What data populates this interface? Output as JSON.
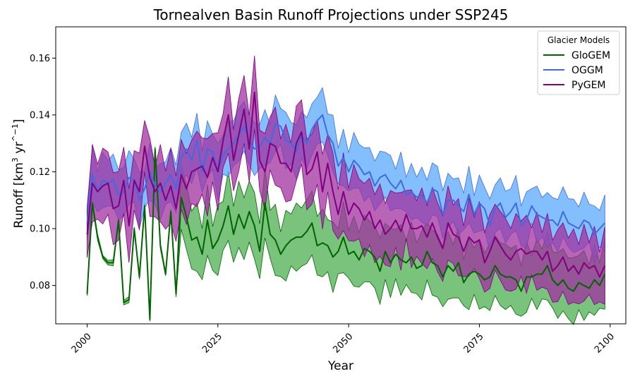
{
  "chart_data": {
    "type": "line",
    "title": "Tornealven Basin Runoff Projections under SSP245",
    "xlabel": "Year",
    "ylabel_main": "Runoff [km",
    "ylabel_sup1": "3",
    "ylabel_mid": " yr",
    "ylabel_sup2": "^−1",
    "ylabel_end": "]",
    "xlim": [
      1994,
      2103
    ],
    "ylim": [
      0.0665,
      0.171
    ],
    "x_ticks": [
      2000,
      2025,
      2050,
      2075,
      2100
    ],
    "y_ticks": [
      0.08,
      0.1,
      0.12,
      0.14,
      0.16
    ],
    "y_tick_labels": [
      "0.08",
      "0.10",
      "0.12",
      "0.14",
      "0.16"
    ],
    "legend_title": "Glacier Models",
    "legend_position": "top-right",
    "x": [
      2000,
      2001,
      2002,
      2003,
      2004,
      2005,
      2006,
      2007,
      2008,
      2009,
      2010,
      2011,
      2012,
      2013,
      2014,
      2015,
      2016,
      2017,
      2018,
      2019,
      2020,
      2021,
      2022,
      2023,
      2024,
      2025,
      2026,
      2027,
      2028,
      2029,
      2030,
      2031,
      2032,
      2033,
      2034,
      2035,
      2036,
      2037,
      2038,
      2039,
      2040,
      2041,
      2042,
      2043,
      2044,
      2045,
      2046,
      2047,
      2048,
      2049,
      2050,
      2051,
      2052,
      2053,
      2054,
      2055,
      2056,
      2057,
      2058,
      2059,
      2060,
      2061,
      2062,
      2063,
      2064,
      2065,
      2066,
      2067,
      2068,
      2069,
      2070,
      2071,
      2072,
      2073,
      2074,
      2075,
      2076,
      2077,
      2078,
      2079,
      2080,
      2081,
      2082,
      2083,
      2084,
      2085,
      2086,
      2087,
      2088,
      2089,
      2090,
      2091,
      2092,
      2093,
      2094,
      2095,
      2096,
      2097,
      2098,
      2099
    ],
    "series": [
      {
        "name": "GloGEM",
        "color": "#006400",
        "fill": "#4caf50",
        "values": [
          0.077,
          0.109,
          0.097,
          0.09,
          0.088,
          0.088,
          0.103,
          0.074,
          0.075,
          0.1,
          0.083,
          0.108,
          0.068,
          0.128,
          0.094,
          0.084,
          0.106,
          0.077,
          0.111,
          0.104,
          0.096,
          0.097,
          0.091,
          0.103,
          0.093,
          0.096,
          0.101,
          0.108,
          0.098,
          0.105,
          0.1,
          0.106,
          0.101,
          0.092,
          0.109,
          0.098,
          0.096,
          0.091,
          0.094,
          0.096,
          0.097,
          0.097,
          0.099,
          0.102,
          0.094,
          0.095,
          0.094,
          0.09,
          0.092,
          0.097,
          0.091,
          0.092,
          0.089,
          0.093,
          0.092,
          0.09,
          0.085,
          0.092,
          0.088,
          0.091,
          0.089,
          0.088,
          0.09,
          0.086,
          0.087,
          0.092,
          0.088,
          0.087,
          0.083,
          0.087,
          0.085,
          0.088,
          0.081,
          0.084,
          0.085,
          0.084,
          0.082,
          0.083,
          0.087,
          0.084,
          0.083,
          0.083,
          0.082,
          0.078,
          0.083,
          0.083,
          0.084,
          0.084,
          0.087,
          0.082,
          0.08,
          0.082,
          0.079,
          0.078,
          0.081,
          0.08,
          0.079,
          0.082,
          0.08,
          0.084
        ],
        "band": 0.01,
        "band_early": 0.0006
      },
      {
        "name": "OGGM",
        "color": "#4169e1",
        "fill": "#5aa9ff",
        "values": [
          0.102,
          0.119,
          0.113,
          0.117,
          0.116,
          0.117,
          0.112,
          0.113,
          0.118,
          0.117,
          0.11,
          0.114,
          0.12,
          0.115,
          0.113,
          0.116,
          0.119,
          0.114,
          0.125,
          0.128,
          0.124,
          0.131,
          0.12,
          0.128,
          0.127,
          0.12,
          0.126,
          0.128,
          0.13,
          0.133,
          0.136,
          0.131,
          0.128,
          0.129,
          0.132,
          0.13,
          0.137,
          0.136,
          0.131,
          0.13,
          0.127,
          0.133,
          0.13,
          0.135,
          0.138,
          0.14,
          0.133,
          0.13,
          0.122,
          0.125,
          0.12,
          0.124,
          0.122,
          0.119,
          0.12,
          0.115,
          0.118,
          0.119,
          0.116,
          0.114,
          0.117,
          0.112,
          0.113,
          0.111,
          0.112,
          0.109,
          0.114,
          0.113,
          0.105,
          0.11,
          0.11,
          0.108,
          0.106,
          0.112,
          0.105,
          0.109,
          0.107,
          0.101,
          0.107,
          0.109,
          0.104,
          0.106,
          0.109,
          0.101,
          0.103,
          0.108,
          0.105,
          0.104,
          0.103,
          0.103,
          0.101,
          0.106,
          0.102,
          0.101,
          0.1,
          0.103,
          0.102,
          0.098,
          0.1,
          0.102
        ],
        "band": 0.008
      },
      {
        "name": "PyGEM",
        "color": "#800080",
        "fill": "#a0309f",
        "values": [
          0.098,
          0.116,
          0.113,
          0.115,
          0.116,
          0.107,
          0.108,
          0.117,
          0.101,
          0.117,
          0.113,
          0.129,
          0.118,
          0.113,
          0.116,
          0.11,
          0.115,
          0.107,
          0.119,
          0.114,
          0.12,
          0.121,
          0.122,
          0.118,
          0.125,
          0.12,
          0.131,
          0.14,
          0.124,
          0.133,
          0.142,
          0.128,
          0.148,
          0.124,
          0.12,
          0.13,
          0.129,
          0.123,
          0.123,
          0.12,
          0.13,
          0.134,
          0.119,
          0.121,
          0.127,
          0.113,
          0.123,
          0.113,
          0.105,
          0.113,
          0.105,
          0.109,
          0.107,
          0.103,
          0.106,
          0.1,
          0.103,
          0.098,
          0.1,
          0.103,
          0.099,
          0.105,
          0.1,
          0.1,
          0.101,
          0.097,
          0.102,
          0.097,
          0.093,
          0.102,
          0.098,
          0.097,
          0.092,
          0.097,
          0.095,
          0.096,
          0.088,
          0.092,
          0.097,
          0.094,
          0.091,
          0.089,
          0.092,
          0.093,
          0.091,
          0.092,
          0.092,
          0.089,
          0.092,
          0.085,
          0.087,
          0.09,
          0.085,
          0.087,
          0.084,
          0.088,
          0.086,
          0.087,
          0.083,
          0.087
        ],
        "band": 0.011
      }
    ]
  }
}
